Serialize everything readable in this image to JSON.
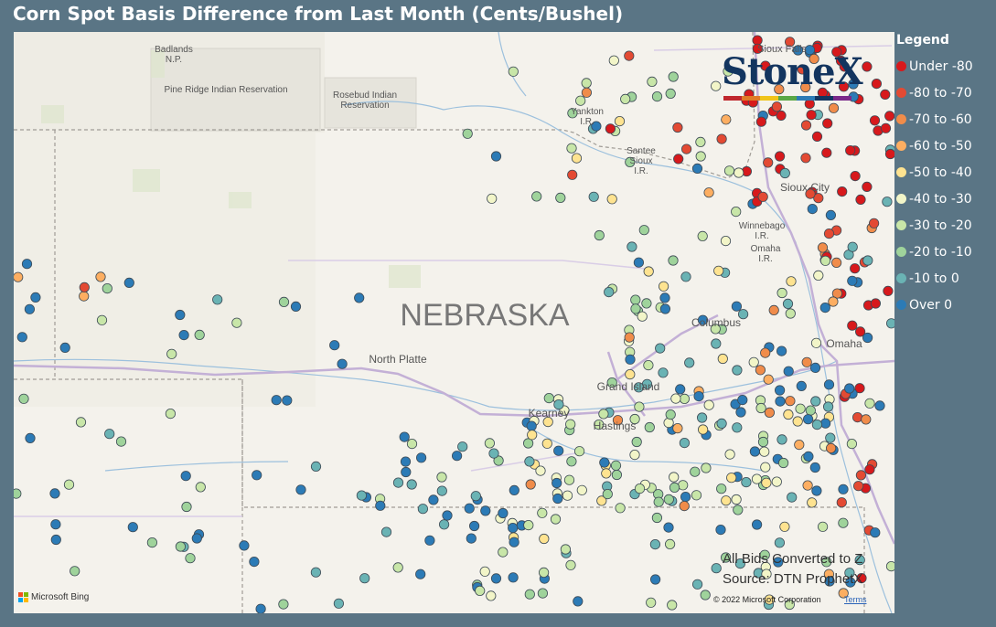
{
  "title": "Corn Spot Basis Difference from Last Month (Cents/Bushel)",
  "legend": {
    "title": "Legend",
    "items": [
      {
        "label": "Under -80",
        "color": "#d7191c"
      },
      {
        "label": "-80 to -70",
        "color": "#e34a33"
      },
      {
        "label": "-70 to -60",
        "color": "#f08c4a"
      },
      {
        "label": "-60 to -50",
        "color": "#fdae61"
      },
      {
        "label": "-50 to -40",
        "color": "#fee390"
      },
      {
        "label": "-40 to -30",
        "color": "#f2f5c8"
      },
      {
        "label": "-30 to -20",
        "color": "#c8e6a8"
      },
      {
        "label": "-20 to -10",
        "color": "#9fd39b"
      },
      {
        "label": "-10 to 0",
        "color": "#6ab3b4"
      },
      {
        "label": "Over 0",
        "color": "#2c7bb6"
      }
    ]
  },
  "logo": {
    "text": "StoneX",
    "stripe_colors": [
      "#c0272d",
      "#e07b27",
      "#f0c419",
      "#5aa845",
      "#2c7bb6",
      "#13355f",
      "#7a2a8a"
    ]
  },
  "map": {
    "state_label": "NEBRASKA",
    "places": [
      {
        "name": "Badlands\nN.P."
      },
      {
        "name": "Pine Ridge Indian Reservation"
      },
      {
        "name": "Rosebud Indian\nReservation"
      },
      {
        "name": "Yankton\nI.R."
      },
      {
        "name": "Santee\nSioux\nI.R."
      },
      {
        "name": "Sioux Falls"
      },
      {
        "name": "Sioux City"
      },
      {
        "name": "Winnebago\nI.R."
      },
      {
        "name": "Omaha\nI.R."
      },
      {
        "name": "Columbus"
      },
      {
        "name": "Omaha"
      },
      {
        "name": "North Platte"
      },
      {
        "name": "Grand Island"
      },
      {
        "name": "Kearney"
      },
      {
        "name": "Hastings"
      }
    ]
  },
  "notes": {
    "line1": "All Bids Converted to Z",
    "line2": "Source: DTN ProphetX"
  },
  "attribution": {
    "copyright": "© 2022 Microsoft Corporation",
    "terms": "Terms",
    "bing": "Microsoft Bing"
  }
}
